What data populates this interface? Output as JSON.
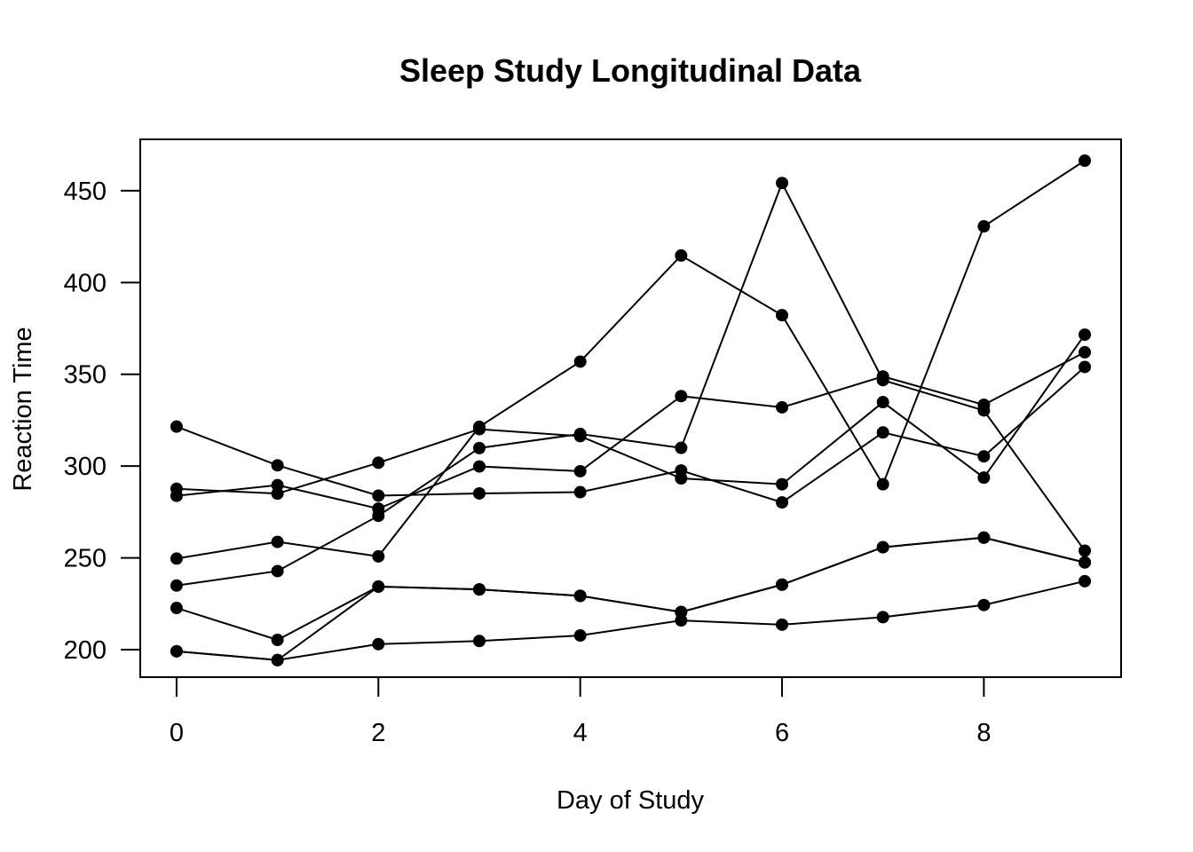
{
  "chart_data": {
    "type": "line",
    "title": "Sleep Study Longitudinal Data",
    "xlabel": "Day of Study",
    "ylabel": "Reaction Time",
    "xlim": [
      -0.36,
      9.36
    ],
    "ylim": [
      185,
      478
    ],
    "xticks": [
      0,
      2,
      4,
      6,
      8
    ],
    "yticks": [
      200,
      250,
      300,
      350,
      400,
      450
    ],
    "grid": false,
    "legend": "none",
    "x": [
      0,
      1,
      2,
      3,
      4,
      5,
      6,
      7,
      8,
      9
    ],
    "series": [
      {
        "values": [
          321.5,
          300.4,
          283.9,
          285.1,
          285.8,
          297.6,
          280.2,
          318.3,
          305.3,
          354.0
        ]
      },
      {
        "values": [
          287.6,
          285.0,
          301.8,
          320.1,
          316.3,
          293.3,
          290.1,
          334.8,
          293.7,
          371.6
        ]
      },
      {
        "values": [
          234.9,
          242.8,
          272.9,
          309.8,
          317.5,
          309.9,
          454.2,
          346.8,
          330.3,
          253.9
        ]
      },
      {
        "values": [
          283.8,
          289.6,
          276.8,
          299.8,
          297.2,
          338.1,
          332.0,
          348.8,
          333.4,
          362.0
        ]
      },
      {
        "values": [
          249.6,
          258.7,
          250.8,
          321.4,
          356.9,
          414.7,
          382.2,
          290.1,
          430.6,
          466.4
        ]
      },
      {
        "values": [
          222.7,
          205.3,
          234.4,
          232.8,
          229.3,
          220.5,
          235.4,
          255.8,
          261.0,
          247.5
        ]
      },
      {
        "values": [
          199.1,
          194.3,
          234.3,
          232.8,
          229.3,
          220.5,
          235.4,
          255.8,
          261.0,
          247.5
        ]
      },
      {
        "values": [
          199.1,
          194.3,
          203.0,
          204.7,
          207.7,
          215.9,
          213.6,
          217.7,
          224.3,
          237.3
        ]
      }
    ]
  }
}
